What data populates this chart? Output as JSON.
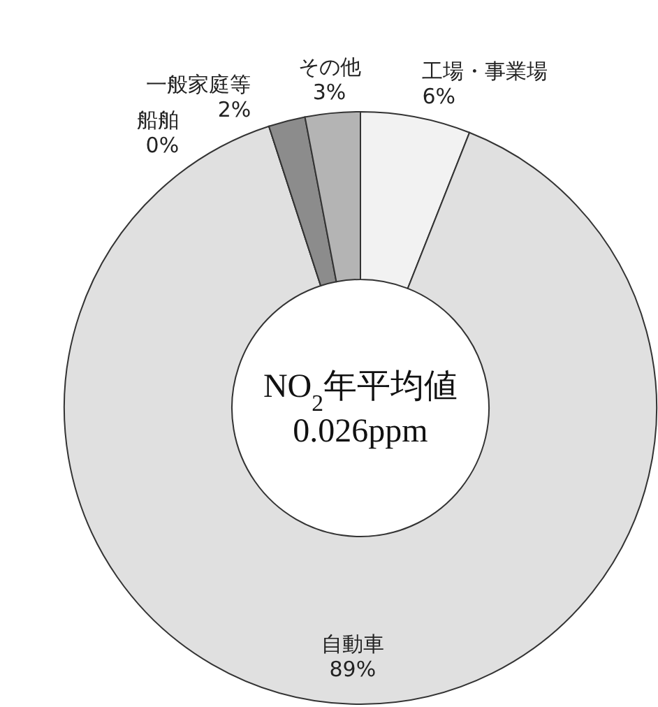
{
  "chart_data": {
    "type": "donut",
    "categories": [
      "工場・事業場",
      "自動車",
      "船舶",
      "一般家庭等",
      "その他"
    ],
    "values": [
      6,
      89,
      0,
      2,
      3
    ],
    "value_labels": [
      "6%",
      "89%",
      "0%",
      "2%",
      "3%"
    ],
    "colors": [
      "#f2f2f2",
      "#e0e0e0",
      "#d0d0d0",
      "#8c8c8c",
      "#b4b4b4"
    ],
    "annotations": [
      "NO$_{2}$年平均値",
      "0.026ppm"
    ]
  }
}
